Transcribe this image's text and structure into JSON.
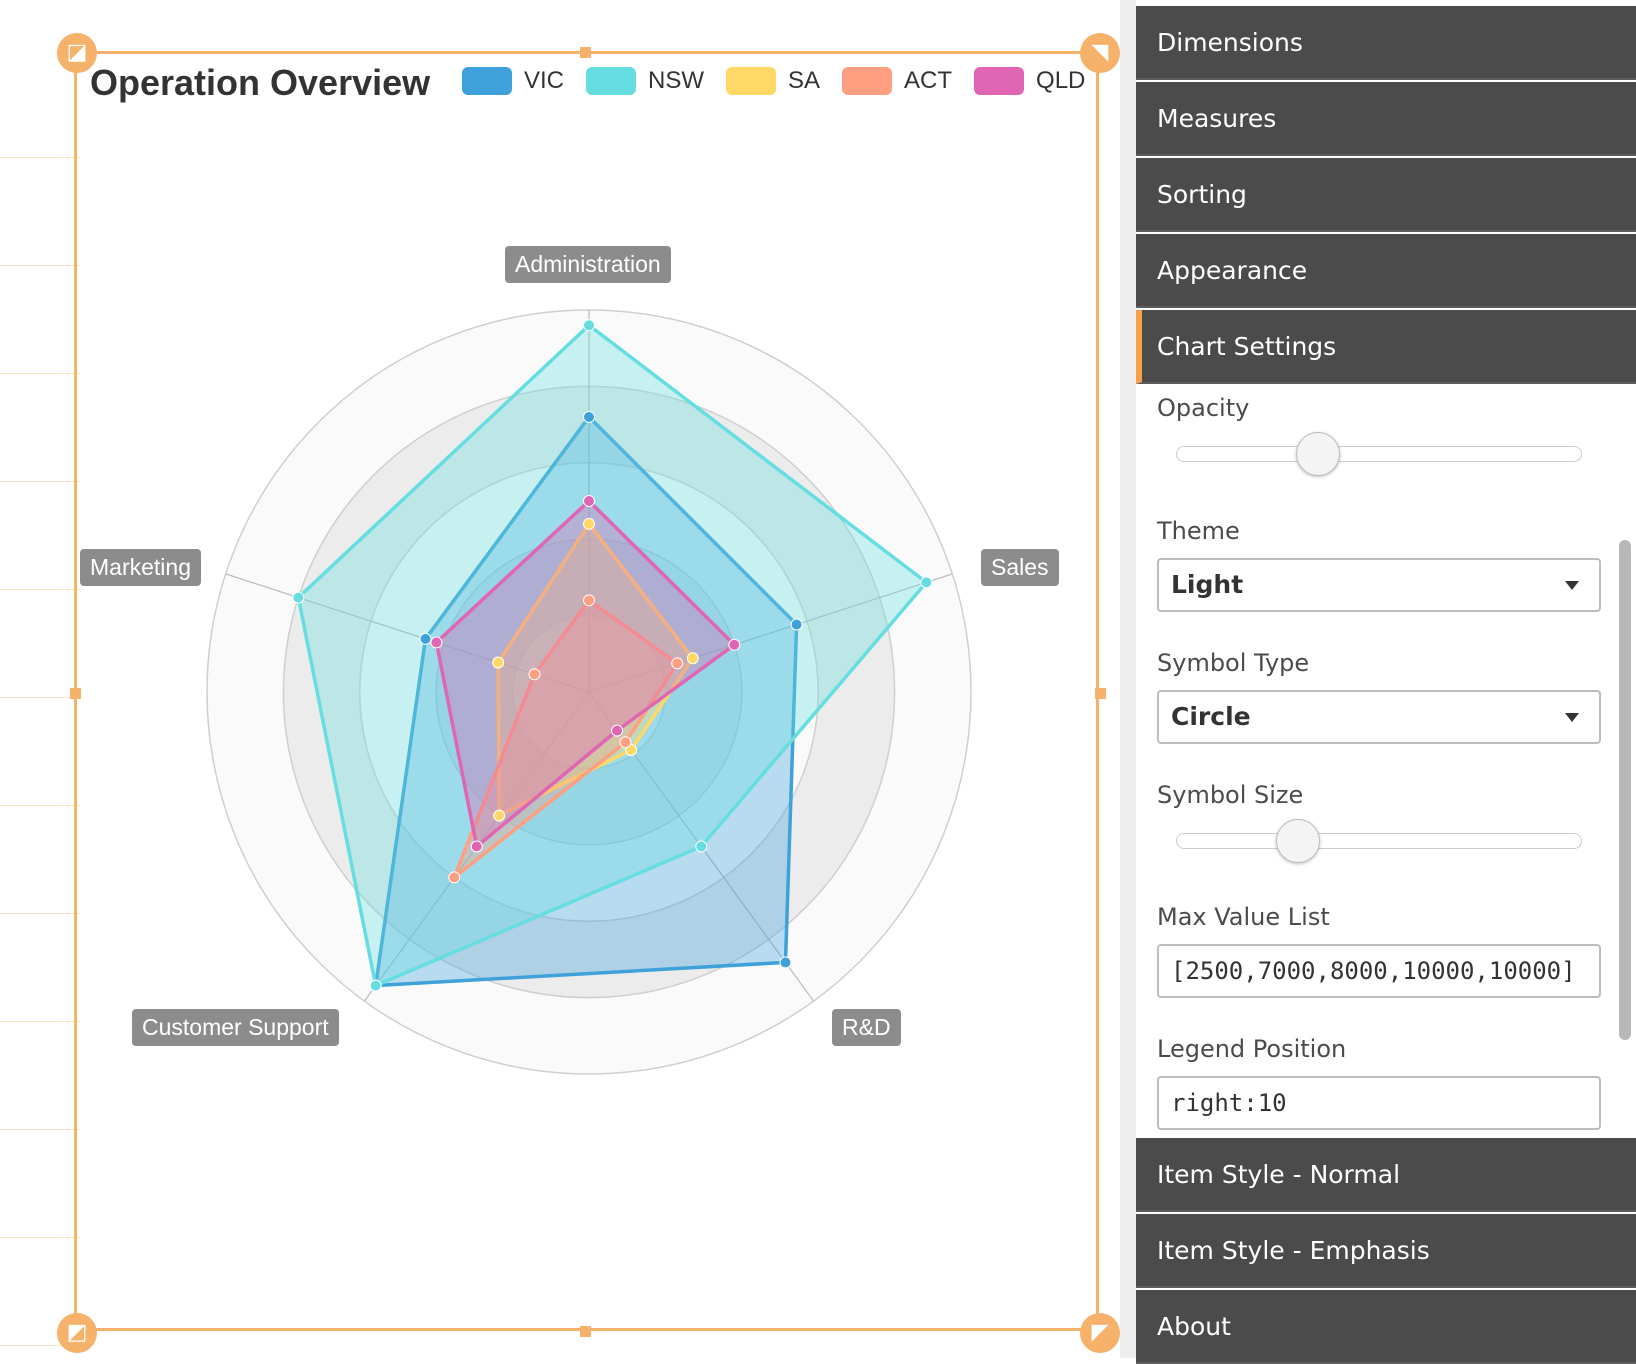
{
  "chart_data": {
    "type": "radar",
    "title": "Operation Overview",
    "indicators": [
      {
        "name": "Administration",
        "max": 2500
      },
      {
        "name": "Sales",
        "max": 7000
      },
      {
        "name": "R&D",
        "max": 8000
      },
      {
        "name": "Customer Support",
        "max": 10000
      },
      {
        "name": "Marketing",
        "max": 10000
      }
    ],
    "series": [
      {
        "name": "VIC",
        "color": "#3fa1d9",
        "values": [
          1800,
          4000,
          7000,
          9500,
          4500
        ]
      },
      {
        "name": "NSW",
        "color": "#66dde0",
        "values": [
          2400,
          6500,
          4000,
          9500,
          8000
        ]
      },
      {
        "name": "SA",
        "color": "#ffd866",
        "values": [
          1100,
          2000,
          1500,
          4000,
          2500
        ]
      },
      {
        "name": "ACT",
        "color": "#ff9f82",
        "values": [
          600,
          1700,
          1300,
          6000,
          1500
        ]
      },
      {
        "name": "QLD",
        "color": "#e066b3",
        "values": [
          1250,
          2800,
          1000,
          5000,
          4200
        ]
      }
    ],
    "legend_position": "top"
  },
  "panel": {
    "sections_top": [
      "Dimensions",
      "Measures",
      "Sorting",
      "Appearance",
      "Chart Settings"
    ],
    "active_section": "Chart Settings",
    "opacity_label": "Opacity",
    "opacity_level": 0.35,
    "theme_label": "Theme",
    "theme_value": "Light",
    "symbol_type_label": "Symbol Type",
    "symbol_type_value": "Circle",
    "symbol_size_label": "Symbol Size",
    "symbol_size_level": 0.3,
    "max_value_list_label": "Max Value List",
    "max_value_list_value": "[2500,7000,8000,10000,10000]",
    "legend_position_label": "Legend Position",
    "legend_position_value": "right:10",
    "sections_bottom": [
      "Item Style - Normal",
      "Item Style - Emphasis",
      "About"
    ]
  },
  "colors": {
    "accent": "#f6b16b",
    "panel_bg": "#4b4b4b",
    "active_marker": "#f6a14a"
  }
}
